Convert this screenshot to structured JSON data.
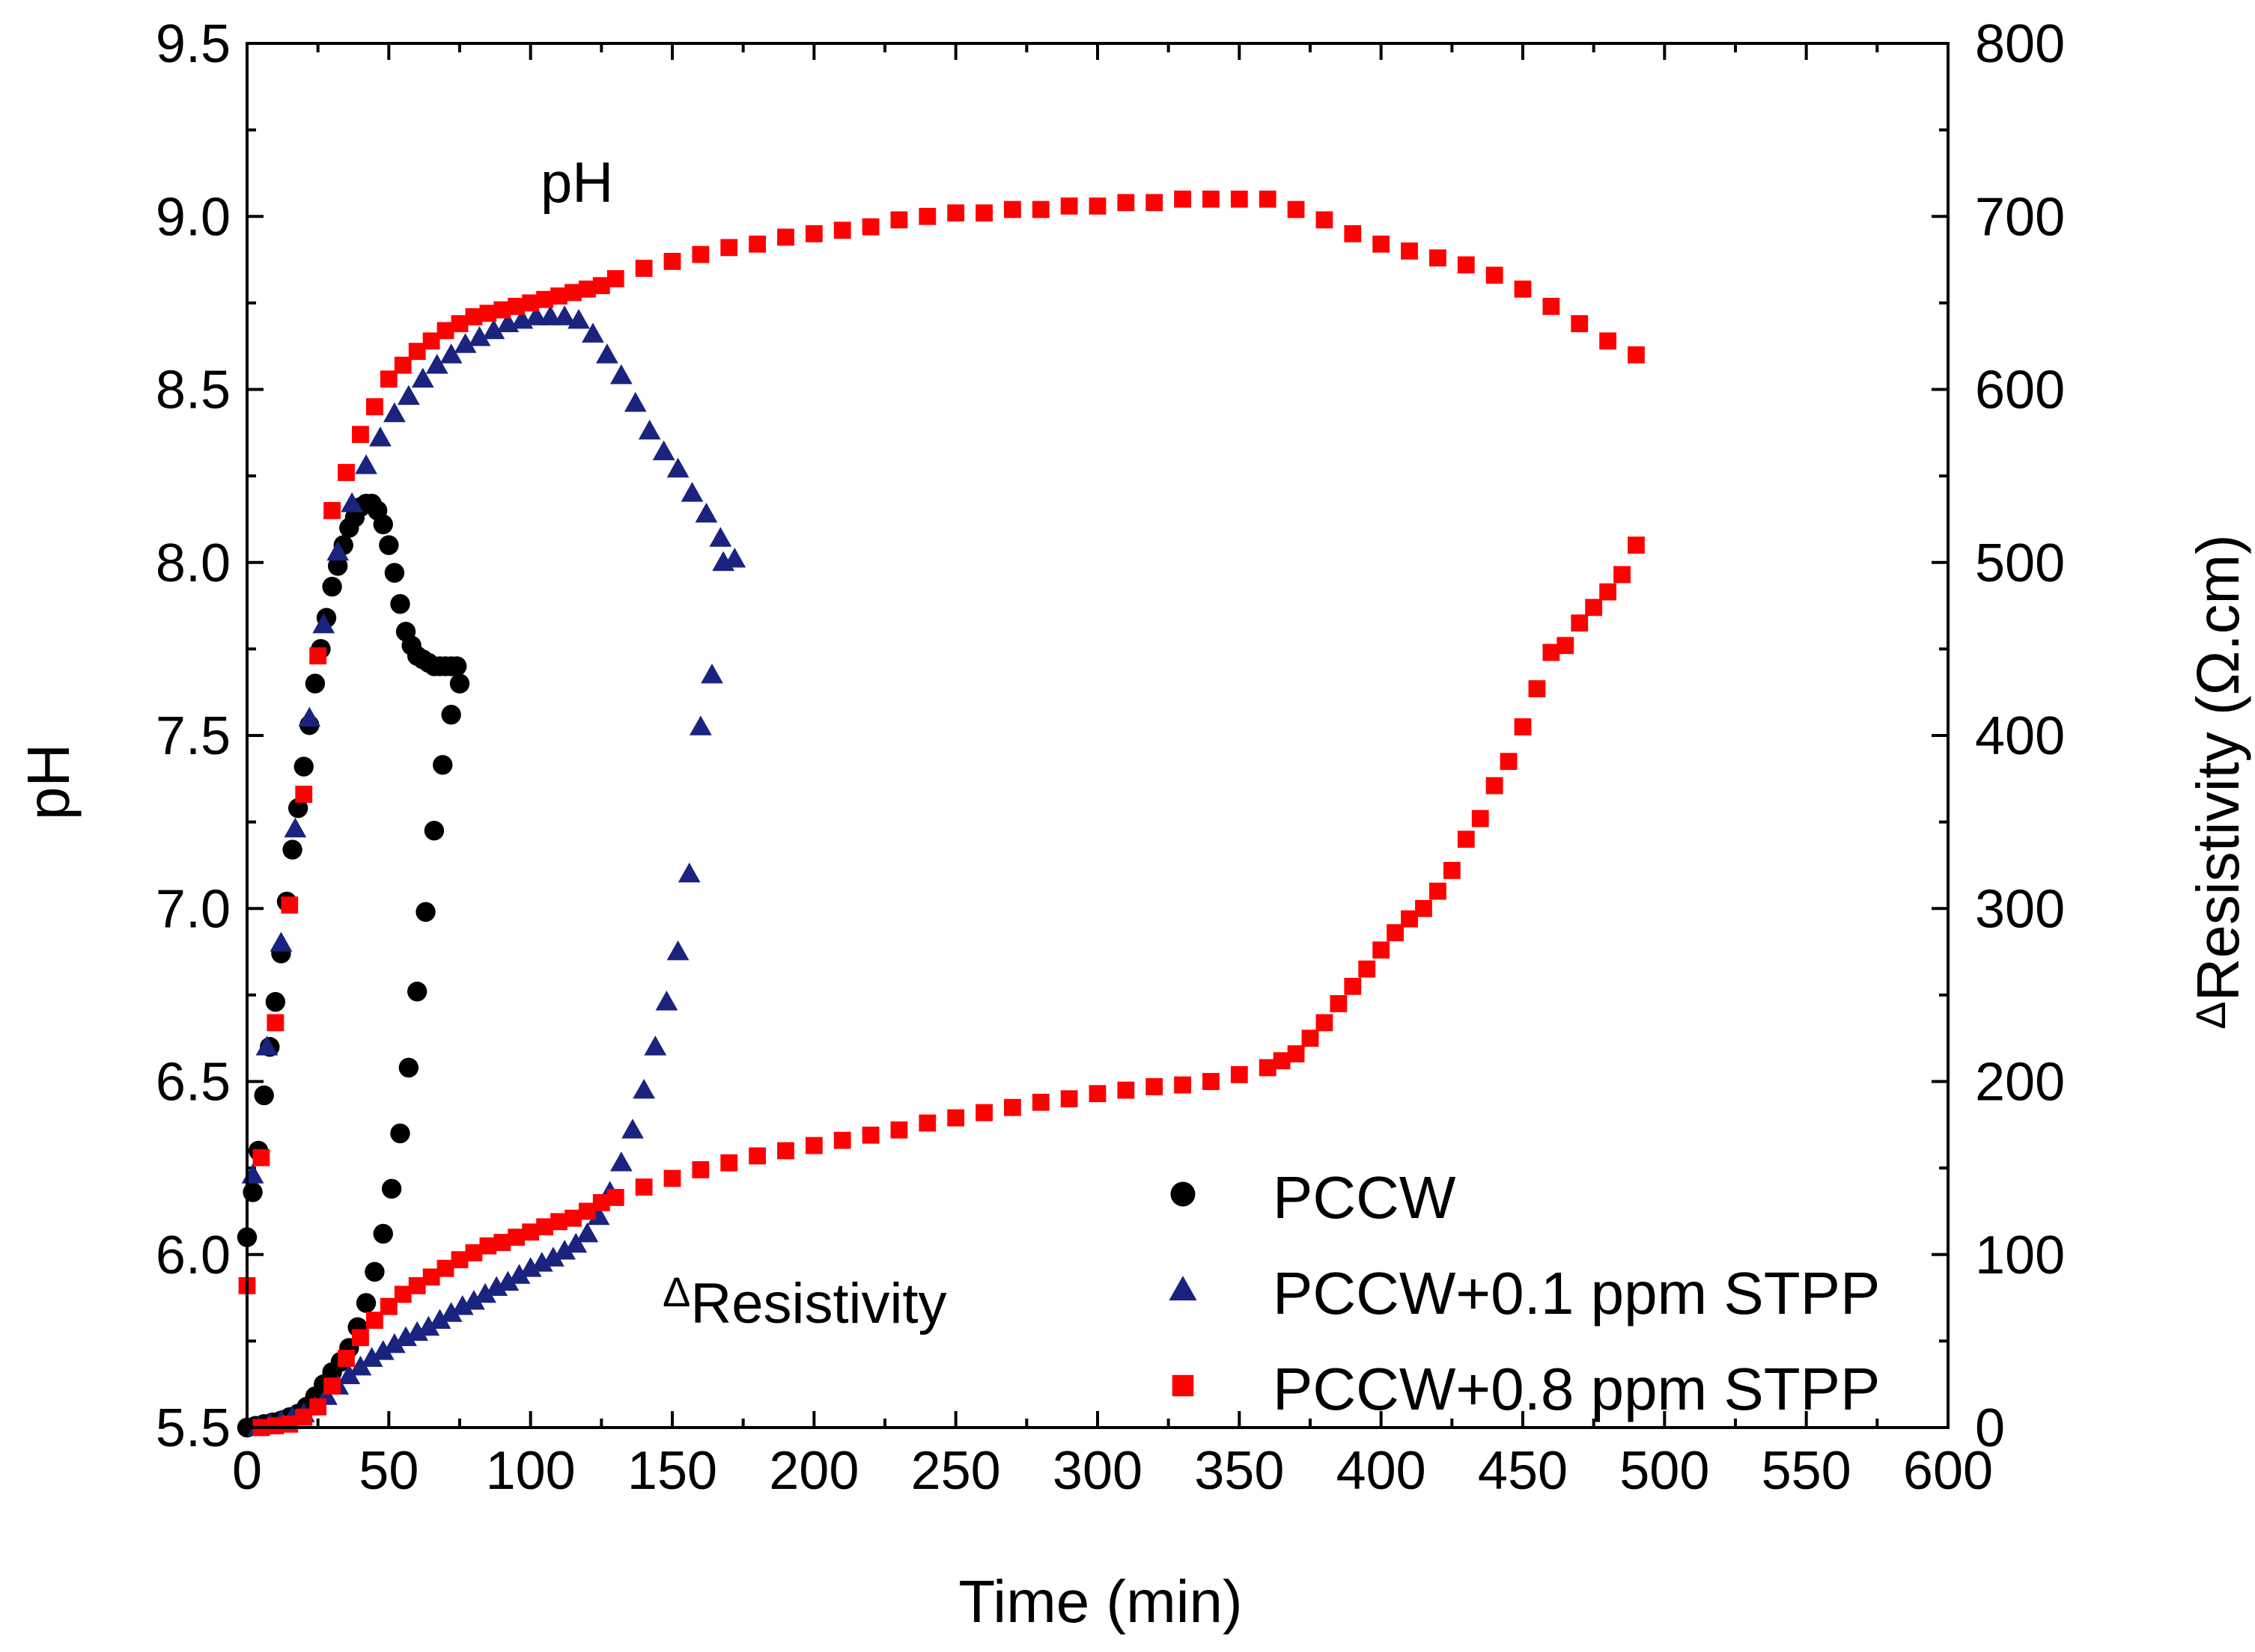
{
  "chart_data": {
    "type": "scatter",
    "xlabel": "Time (min)",
    "ylabel_left": "pH",
    "ylabel_right_prefix": "Δ",
    "ylabel_right": "Resistivity (Ω.cm)",
    "xlim": [
      0,
      600
    ],
    "ylim_left": [
      5.5,
      9.5
    ],
    "ylim_right": [
      0,
      800
    ],
    "x_ticks": [
      "0",
      "50",
      "100",
      "150",
      "200",
      "250",
      "300",
      "350",
      "400",
      "450",
      "500",
      "550",
      "600"
    ],
    "y_left_ticks": [
      "5.5",
      "6.0",
      "6.5",
      "7.0",
      "7.5",
      "8.0",
      "8.5",
      "9.0",
      "9.5"
    ],
    "y_right_ticks": [
      "0",
      "100",
      "200",
      "300",
      "400",
      "500",
      "600",
      "700",
      "800"
    ],
    "grid": false,
    "legend_position": "bottom-right",
    "annotations": {
      "ph": "pH",
      "resistivity_prefix": "Δ",
      "resistivity": "Resistivity"
    },
    "series": [
      {
        "name": "PCCW",
        "marker": "circle",
        "color": "#000000",
        "ph": {
          "x": [
            0,
            2,
            4,
            6,
            8,
            10,
            12,
            14,
            16,
            18,
            20,
            22,
            24,
            26,
            28,
            30,
            32,
            34,
            36,
            38,
            40,
            42,
            44,
            46,
            48,
            50,
            52,
            54,
            56,
            58,
            60,
            62,
            64,
            66,
            68,
            70,
            72,
            74
          ],
          "y": [
            6.05,
            6.18,
            6.3,
            6.46,
            6.6,
            6.73,
            6.87,
            7.02,
            7.17,
            7.29,
            7.41,
            7.53,
            7.65,
            7.75,
            7.84,
            7.93,
            7.99,
            8.05,
            8.1,
            8.13,
            8.16,
            8.17,
            8.17,
            8.15,
            8.11,
            8.05,
            7.97,
            7.88,
            7.8,
            7.76,
            7.73,
            7.72,
            7.71,
            7.7,
            7.7,
            7.7,
            7.7,
            7.7
          ]
        },
        "resistivity": {
          "x": [
            0,
            3,
            6,
            9,
            12,
            15,
            18,
            21,
            24,
            27,
            30,
            33,
            36,
            39,
            42,
            45,
            48,
            51,
            54,
            57,
            60,
            63,
            66,
            69,
            72,
            75
          ],
          "y": [
            0,
            1,
            2,
            3,
            4,
            6,
            8,
            12,
            18,
            25,
            32,
            38,
            46,
            58,
            72,
            90,
            112,
            138,
            170,
            208,
            252,
            298,
            345,
            383,
            412,
            430
          ]
        }
      },
      {
        "name": "PCCW+0.1 ppm STPP",
        "marker": "triangle",
        "color": "#1a237e",
        "ph": {
          "x": [
            2,
            7,
            12,
            17,
            22,
            27,
            32,
            37,
            42,
            47,
            52,
            57,
            62,
            67,
            72,
            77,
            82,
            87,
            92,
            97,
            102,
            107,
            112,
            117,
            122,
            127,
            132,
            137,
            142,
            147,
            152,
            157,
            162,
            167,
            172
          ],
          "y": [
            6.23,
            6.6,
            6.9,
            7.23,
            7.55,
            7.82,
            8.03,
            8.17,
            8.28,
            8.36,
            8.43,
            8.48,
            8.53,
            8.57,
            8.6,
            8.63,
            8.65,
            8.67,
            8.69,
            8.7,
            8.71,
            8.71,
            8.71,
            8.7,
            8.66,
            8.6,
            8.54,
            8.46,
            8.38,
            8.32,
            8.27,
            8.2,
            8.14,
            8.07,
            8.01
          ]
        },
        "resistivity": {
          "x": [
            4,
            8,
            12,
            16,
            20,
            24,
            28,
            32,
            36,
            40,
            44,
            48,
            52,
            56,
            60,
            64,
            68,
            72,
            76,
            80,
            84,
            88,
            92,
            96,
            100,
            104,
            108,
            112,
            116,
            120,
            124,
            128,
            132,
            136,
            140,
            144,
            148,
            152,
            156,
            160,
            164,
            168
          ],
          "y": [
            0,
            2,
            4,
            6,
            8,
            12,
            18,
            24,
            30,
            35,
            40,
            44,
            48,
            52,
            55,
            58,
            62,
            66,
            70,
            73,
            77,
            81,
            84,
            88,
            92,
            95,
            98,
            102,
            106,
            112,
            122,
            136,
            153,
            172,
            195,
            220,
            246,
            275,
            320,
            405,
            435,
            500
          ]
        }
      },
      {
        "name": "PCCW+0.8 ppm STPP",
        "marker": "square",
        "color": "#ff0000",
        "ph": {
          "x": [
            0,
            5,
            10,
            15,
            20,
            25,
            30,
            35,
            40,
            45,
            50,
            55,
            60,
            65,
            70,
            75,
            80,
            85,
            90,
            95,
            100,
            105,
            110,
            115,
            120,
            125,
            130,
            140,
            150,
            160,
            170,
            180,
            190,
            200,
            210,
            220,
            230,
            240,
            250,
            260,
            270,
            280,
            290,
            300,
            310,
            320,
            330,
            340,
            350,
            360,
            370,
            380,
            390,
            400,
            410,
            420,
            430,
            440,
            450,
            460,
            470,
            480,
            490
          ],
          "y": [
            5.91,
            6.28,
            6.67,
            7.01,
            7.33,
            7.73,
            8.15,
            8.26,
            8.37,
            8.45,
            8.53,
            8.57,
            8.61,
            8.64,
            8.67,
            8.69,
            8.71,
            8.72,
            8.73,
            8.74,
            8.75,
            8.76,
            8.77,
            8.78,
            8.79,
            8.8,
            8.82,
            8.85,
            8.87,
            8.89,
            8.91,
            8.92,
            8.94,
            8.95,
            8.96,
            8.97,
            8.99,
            9.0,
            9.01,
            9.01,
            9.02,
            9.02,
            9.03,
            9.03,
            9.04,
            9.04,
            9.05,
            9.05,
            9.05,
            9.05,
            9.02,
            8.99,
            8.95,
            8.92,
            8.9,
            8.88,
            8.86,
            8.83,
            8.79,
            8.74,
            8.69,
            8.64,
            8.6
          ]
        },
        "resistivity": {
          "x": [
            5,
            10,
            15,
            20,
            25,
            30,
            35,
            40,
            45,
            50,
            55,
            60,
            65,
            70,
            75,
            80,
            85,
            90,
            95,
            100,
            105,
            110,
            115,
            120,
            125,
            130,
            140,
            150,
            160,
            170,
            180,
            190,
            200,
            210,
            220,
            230,
            240,
            250,
            260,
            270,
            280,
            290,
            300,
            310,
            320,
            330,
            340,
            350,
            360,
            365,
            370,
            375,
            380,
            385,
            390,
            395,
            400,
            405,
            410,
            415,
            420,
            425,
            430,
            435,
            440,
            445,
            450,
            455,
            460,
            465,
            470,
            475,
            480,
            485,
            490
          ],
          "y": [
            0,
            1,
            2,
            6,
            12,
            24,
            40,
            52,
            62,
            70,
            77,
            82,
            87,
            92,
            97,
            101,
            105,
            107,
            110,
            113,
            116,
            119,
            121,
            125,
            130,
            133,
            139,
            144,
            149,
            153,
            157,
            160,
            163,
            166,
            169,
            172,
            176,
            179,
            182,
            185,
            188,
            190,
            193,
            195,
            197,
            198,
            200,
            204,
            208,
            212,
            216,
            225,
            234,
            245,
            255,
            265,
            276,
            286,
            294,
            300,
            310,
            322,
            340,
            352,
            371,
            385,
            405,
            427,
            448,
            452,
            465,
            474,
            483,
            493,
            510
          ]
        }
      }
    ]
  }
}
